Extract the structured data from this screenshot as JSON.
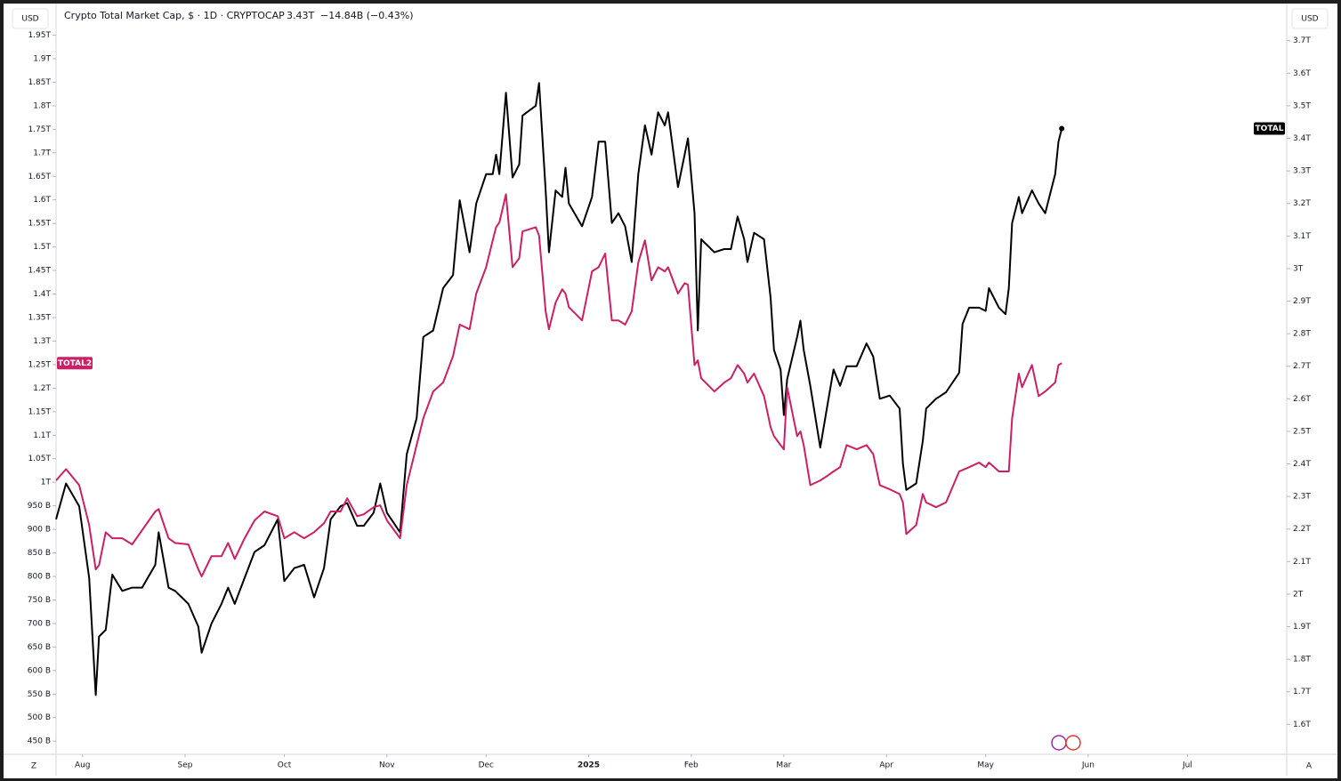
{
  "chart_data": {
    "type": "line",
    "title": "Crypto Total Market Cap, $ · 1D · CRYPTOCAP",
    "price": "3.43T",
    "change": "−14.84B (−0.43%)",
    "ui": {
      "left_currency": "USD",
      "right_currency": "USD",
      "left_corner": "Z",
      "right_corner": "A"
    },
    "grid": false,
    "x": [
      -8,
      -5,
      -1,
      2,
      4,
      5,
      7,
      9,
      12,
      15,
      18,
      22,
      23,
      26,
      28,
      32,
      35,
      36,
      39,
      42,
      44,
      46,
      49,
      52,
      55,
      59,
      61,
      64,
      67,
      70,
      73,
      75,
      78,
      80,
      83,
      85,
      88,
      90,
      92,
      96,
      98,
      101,
      103,
      106,
      109,
      112,
      114,
      117,
      119,
      122,
      124,
      125,
      126,
      128,
      130,
      132,
      133,
      137,
      138,
      140,
      141,
      143,
      145,
      146,
      147,
      151,
      154,
      156,
      158,
      160,
      162,
      164,
      166,
      168,
      170,
      172,
      174,
      176,
      177,
      180,
      182,
      183,
      185,
      186,
      187,
      191,
      194,
      196,
      198,
      200,
      201,
      203,
      206,
      208,
      209,
      211,
      212,
      213,
      216,
      217,
      218,
      220,
      223,
      225,
      227,
      229,
      231,
      234,
      237,
      239,
      241,
      244,
      247,
      248,
      249,
      252,
      254,
      255,
      258,
      261,
      265,
      266,
      268,
      271,
      273,
      274,
      277,
      279,
      280,
      281,
      283,
      284,
      287,
      289,
      291,
      294,
      295,
      296
    ],
    "xlim": [
      -8,
      364
    ],
    "xticks": [
      {
        "value": 0,
        "label": "Aug"
      },
      {
        "value": 31,
        "label": "Sep"
      },
      {
        "value": 61,
        "label": "Oct"
      },
      {
        "value": 92,
        "label": "Nov"
      },
      {
        "value": 122,
        "label": "Dec"
      },
      {
        "value": 153,
        "label": "2025"
      },
      {
        "value": 184,
        "label": "Feb"
      },
      {
        "value": 212,
        "label": "Mar"
      },
      {
        "value": 243,
        "label": "Apr"
      },
      {
        "value": 273,
        "label": "May"
      },
      {
        "value": 304,
        "label": "Jun"
      },
      {
        "value": 334,
        "label": "Jul"
      }
    ],
    "ylim": [
      422,
      1968
    ],
    "yticks": [
      {
        "value": 450,
        "label": "450 B"
      },
      {
        "value": 500,
        "label": "500 B"
      },
      {
        "value": 550,
        "label": "550 B"
      },
      {
        "value": 600,
        "label": "600 B"
      },
      {
        "value": 650,
        "label": "650 B"
      },
      {
        "value": 700,
        "label": "700 B"
      },
      {
        "value": 750,
        "label": "750 B"
      },
      {
        "value": 800,
        "label": "800 B"
      },
      {
        "value": 850,
        "label": "850 B"
      },
      {
        "value": 900,
        "label": "900 B"
      },
      {
        "value": 950,
        "label": "950 B"
      },
      {
        "value": 1000,
        "label": "1T"
      },
      {
        "value": 1050,
        "label": "1.05T"
      },
      {
        "value": 1100,
        "label": "1.1T"
      },
      {
        "value": 1150,
        "label": "1.15T"
      },
      {
        "value": 1200,
        "label": "1.2T"
      },
      {
        "value": 1250,
        "label": "1.25T"
      },
      {
        "value": 1300,
        "label": "1.3T"
      },
      {
        "value": 1350,
        "label": "1.35T"
      },
      {
        "value": 1400,
        "label": "1.4T"
      },
      {
        "value": 1450,
        "label": "1.45T"
      },
      {
        "value": 1500,
        "label": "1.5T"
      },
      {
        "value": 1550,
        "label": "1.55T"
      },
      {
        "value": 1600,
        "label": "1.6T"
      },
      {
        "value": 1650,
        "label": "1.65T"
      },
      {
        "value": 1700,
        "label": "1.7T"
      },
      {
        "value": 1750,
        "label": "1.75T"
      },
      {
        "value": 1800,
        "label": "1.8T"
      },
      {
        "value": 1850,
        "label": "1.85T"
      },
      {
        "value": 1900,
        "label": "1.9T"
      },
      {
        "value": 1950,
        "label": "1.95T"
      }
    ],
    "y2lim": [
      1.508,
      3.743
    ],
    "y2ticks": [
      {
        "value": 1.6,
        "label": "1.6T"
      },
      {
        "value": 1.7,
        "label": "1.7T"
      },
      {
        "value": 1.8,
        "label": "1.8T"
      },
      {
        "value": 1.9,
        "label": "1.9T"
      },
      {
        "value": 2,
        "label": "2T"
      },
      {
        "value": 2.1,
        "label": "2.1T"
      },
      {
        "value": 2.2,
        "label": "2.2T"
      },
      {
        "value": 2.3,
        "label": "2.3T"
      },
      {
        "value": 2.4,
        "label": "2.4T"
      },
      {
        "value": 2.5,
        "label": "2.5T"
      },
      {
        "value": 2.6,
        "label": "2.6T"
      },
      {
        "value": 2.7,
        "label": "2.7T"
      },
      {
        "value": 2.8,
        "label": "2.8T"
      },
      {
        "value": 2.9,
        "label": "2.9T"
      },
      {
        "value": 3,
        "label": "3T"
      },
      {
        "value": 3.1,
        "label": "3.1T"
      },
      {
        "value": 3.2,
        "label": "3.2T"
      },
      {
        "value": 3.3,
        "label": "3.3T"
      },
      {
        "value": 3.4,
        "label": "3.4T"
      },
      {
        "value": 3.5,
        "label": "3.5T"
      },
      {
        "value": 3.6,
        "label": "3.6T"
      },
      {
        "value": 3.7,
        "label": "3.7T"
      }
    ],
    "series": [
      {
        "name": "TOTAL",
        "color": "#000000",
        "axis": "y2",
        "values": [
          2.23,
          2.34,
          2.27,
          2.05,
          1.69,
          1.87,
          1.89,
          2.06,
          2.01,
          2.02,
          2.02,
          2.09,
          2.19,
          2.02,
          2.01,
          1.97,
          1.9,
          1.82,
          1.91,
          1.97,
          2.02,
          1.97,
          2.05,
          2.13,
          2.15,
          2.23,
          2.04,
          2.08,
          2.09,
          1.99,
          2.08,
          2.23,
          2.27,
          2.28,
          2.21,
          2.21,
          2.25,
          2.34,
          2.25,
          2.19,
          2.43,
          2.54,
          2.79,
          2.81,
          2.94,
          2.98,
          3.21,
          3.05,
          3.2,
          3.29,
          3.29,
          3.35,
          3.29,
          3.54,
          3.28,
          3.32,
          3.47,
          3.5,
          3.57,
          3.24,
          3.05,
          3.24,
          3.22,
          3.31,
          3.2,
          3.13,
          3.22,
          3.39,
          3.39,
          3.14,
          3.17,
          3.13,
          3.02,
          3.29,
          3.44,
          3.35,
          3.48,
          3.44,
          3.48,
          3.25,
          3.35,
          3.4,
          3.17,
          2.81,
          3.09,
          3.05,
          3.06,
          3.06,
          3.16,
          3.09,
          3.02,
          3.11,
          3.09,
          2.91,
          2.75,
          2.69,
          2.55,
          2.66,
          2.79,
          2.84,
          2.75,
          2.64,
          2.45,
          2.57,
          2.69,
          2.64,
          2.7,
          2.7,
          2.77,
          2.73,
          2.6,
          2.61,
          2.57,
          2.4,
          2.32,
          2.34,
          2.47,
          2.57,
          2.6,
          2.62,
          2.68,
          2.83,
          2.88,
          2.88,
          2.87,
          2.94,
          2.88,
          2.86,
          2.94,
          3.14,
          3.22,
          3.17,
          3.24,
          3.2,
          3.17,
          3.29,
          3.39,
          3.43
        ]
      },
      {
        "name": "TOTAL2",
        "color": "#cc1f66",
        "values": [
          1004,
          1028,
          994,
          909,
          815,
          824,
          894,
          881,
          881,
          868,
          898,
          938,
          943,
          881,
          871,
          868,
          815,
          800,
          843,
          843,
          871,
          837,
          881,
          919,
          938,
          928,
          881,
          894,
          881,
          894,
          913,
          938,
          938,
          966,
          928,
          932,
          947,
          951,
          919,
          881,
          994,
          1079,
          1136,
          1193,
          1212,
          1268,
          1335,
          1325,
          1401,
          1457,
          1514,
          1542,
          1552,
          1612,
          1457,
          1476,
          1533,
          1542,
          1524,
          1363,
          1325,
          1382,
          1410,
          1401,
          1372,
          1344,
          1448,
          1457,
          1486,
          1344,
          1344,
          1335,
          1363,
          1467,
          1514,
          1429,
          1457,
          1448,
          1457,
          1401,
          1423,
          1420,
          1249,
          1259,
          1221,
          1193,
          1212,
          1221,
          1249,
          1231,
          1212,
          1231,
          1183,
          1117,
          1098,
          1079,
          1070,
          1202,
          1098,
          1108,
          1079,
          994,
          1004,
          1013,
          1023,
          1032,
          1079,
          1070,
          1079,
          1060,
          994,
          985,
          975,
          957,
          890,
          909,
          975,
          957,
          947,
          957,
          1023,
          1026,
          1032,
          1042,
          1032,
          1042,
          1023,
          1023,
          1023,
          1136,
          1231,
          1202,
          1249,
          1183,
          1193,
          1212,
          1249,
          1253
        ]
      }
    ]
  }
}
